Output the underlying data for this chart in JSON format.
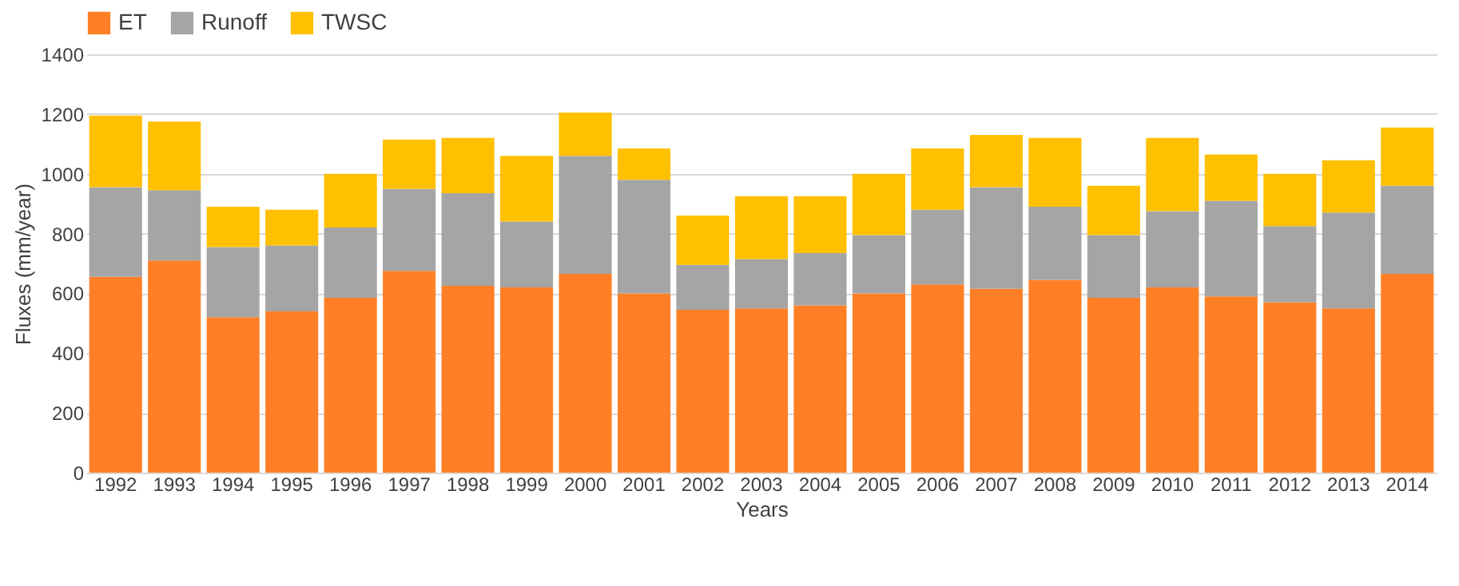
{
  "chart_data": {
    "type": "bar",
    "stacked": true,
    "xlabel": "Years",
    "ylabel": "Fluxes (mm/year)",
    "categories": [
      "1992",
      "1993",
      "1994",
      "1995",
      "1996",
      "1997",
      "1998",
      "1999",
      "2000",
      "2001",
      "2002",
      "2003",
      "2004",
      "2005",
      "2006",
      "2007",
      "2008",
      "2009",
      "2010",
      "2011",
      "2012",
      "2013",
      "2014"
    ],
    "series": [
      {
        "name": "ET",
        "color": "#ff7f27",
        "values": [
          655,
          710,
          520,
          540,
          585,
          675,
          625,
          620,
          665,
          600,
          545,
          550,
          560,
          600,
          630,
          615,
          645,
          585,
          620,
          590,
          570,
          550,
          665
        ]
      },
      {
        "name": "Runoff",
        "color": "#a5a5a5",
        "values": [
          300,
          235,
          235,
          220,
          235,
          275,
          310,
          220,
          395,
          380,
          150,
          165,
          175,
          195,
          250,
          340,
          245,
          210,
          255,
          320,
          255,
          320,
          295
        ]
      },
      {
        "name": "TWSC",
        "color": "#ffc000",
        "values": [
          240,
          230,
          135,
          120,
          180,
          165,
          185,
          220,
          145,
          105,
          165,
          210,
          190,
          205,
          205,
          175,
          230,
          165,
          245,
          155,
          175,
          175,
          195
        ]
      }
    ],
    "ylim": [
      0,
      1400
    ],
    "yticks": [
      0,
      200,
      400,
      600,
      800,
      1000,
      1200,
      1400
    ],
    "grid": "y",
    "legend": "top"
  }
}
